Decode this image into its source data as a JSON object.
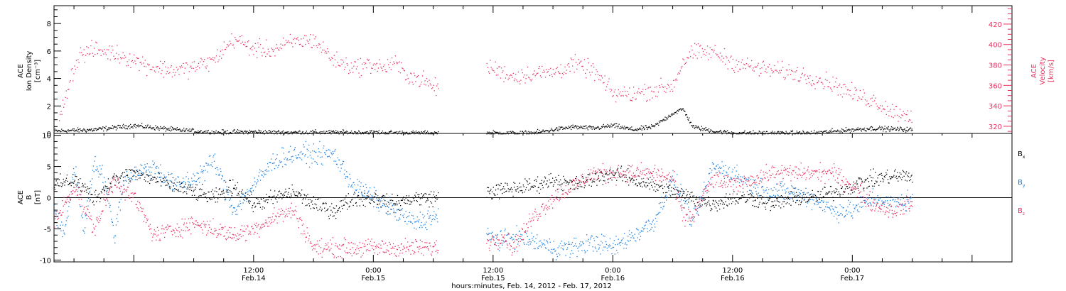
{
  "colors": {
    "black": "#000000",
    "pink": "#e8305f",
    "blue": "#1a7fe0",
    "frame": "#000000"
  },
  "xaxis": {
    "label": "hours:minutes, Feb. 14, 2012 - Feb. 17, 2012",
    "range_hours": [
      -8,
      88
    ],
    "ticks": [
      {
        "hour": 12,
        "time": "12:00",
        "day": "Feb.14"
      },
      {
        "hour": 24,
        "time": "0:00",
        "day": "Feb.15"
      },
      {
        "hour": 36,
        "time": "12:00",
        "day": "Feb.15"
      },
      {
        "hour": 48,
        "time": "0:00",
        "day": "Feb.16"
      },
      {
        "hour": 60,
        "time": "12:00",
        "day": "Feb.16"
      },
      {
        "hour": 72,
        "time": "0:00",
        "day": "Feb.17"
      }
    ]
  },
  "chart_data": [
    {
      "type": "scatter",
      "panel": "top",
      "ylabel_left": [
        "ACE",
        "Ion Density",
        "[cm⁻³]"
      ],
      "ylabel_right": [
        "ACE",
        "Velocity",
        "[km/s]"
      ],
      "ylim_left": [
        0,
        9.3
      ],
      "ylim_right": [
        313,
        438
      ],
      "yticks_left": [
        0,
        2,
        4,
        6,
        8
      ],
      "yticks_right": [
        320,
        340,
        360,
        380,
        400,
        420
      ],
      "data_gap_hours": [
        30.5,
        35.3
      ],
      "series": [
        {
          "axis": "right",
          "color": "#e8305f",
          "x": [
            -7.5,
            -6.5,
            -5.5,
            -4,
            -2,
            0,
            2,
            4,
            6,
            8,
            10,
            12,
            14,
            16,
            18,
            19,
            20,
            22,
            24,
            25,
            26,
            27,
            28,
            29,
            30,
            35.5,
            37,
            38,
            40,
            42,
            44,
            46,
            48,
            50,
            52,
            54,
            55,
            56,
            58,
            60,
            62,
            64,
            66,
            68,
            70,
            72,
            74,
            76,
            78
          ],
          "y": [
            325,
            365,
            390,
            395,
            392,
            385,
            378,
            375,
            378,
            385,
            406,
            396,
            395,
            403,
            405,
            395,
            385,
            378,
            381,
            377,
            383,
            373,
            368,
            365,
            358,
            378,
            373,
            369,
            372,
            373,
            381,
            375,
            352,
            352,
            356,
            360,
            384,
            392,
            393,
            383,
            378,
            375,
            373,
            368,
            362,
            352,
            346,
            335,
            331
          ]
        },
        {
          "axis": "left",
          "color": "#000000",
          "x": [
            -8,
            -4,
            0,
            4,
            8,
            12,
            14,
            16,
            20,
            24,
            28,
            30,
            35.5,
            40,
            42,
            44,
            46,
            48,
            50,
            52,
            54,
            55,
            56,
            58,
            60,
            64,
            68,
            72,
            74,
            76,
            78
          ],
          "y": [
            0.2,
            0.3,
            0.6,
            0.3,
            0.1,
            0.15,
            0.1,
            0.1,
            0.1,
            0.1,
            0.05,
            0.05,
            0.05,
            0.05,
            0.3,
            0.5,
            0.4,
            0.6,
            0.3,
            0.5,
            1.5,
            1.8,
            0.5,
            0.2,
            0.05,
            0.05,
            0.05,
            0.3,
            0.4,
            0.35,
            0.3
          ]
        }
      ]
    },
    {
      "type": "scatter",
      "panel": "bottom",
      "ylabel_left": [
        "ACE",
        "B",
        "[nT]"
      ],
      "ylim": [
        -10.3,
        10.3
      ],
      "yticks": [
        -10,
        -5,
        0,
        5,
        10
      ],
      "zero_line": true,
      "data_gap_hours": [
        30.5,
        35.3
      ],
      "legend": [
        {
          "main": "B",
          "sub": "x",
          "color": "#000000"
        },
        {
          "main": "B",
          "sub": "y",
          "color": "#1a7fe0"
        },
        {
          "main": "B",
          "sub": "z",
          "color": "#e8305f"
        }
      ],
      "series": [
        {
          "name": "Bx",
          "color": "#000000",
          "x": [
            -8,
            -6,
            -4,
            -2,
            0,
            2,
            4,
            6,
            8,
            10,
            12,
            14,
            16,
            18,
            20,
            22,
            24,
            26,
            28,
            30,
            35.5,
            38,
            40,
            42,
            44,
            46,
            48,
            50,
            52,
            54,
            56,
            58,
            60,
            62,
            64,
            66,
            68,
            70,
            72,
            74,
            76,
            78
          ],
          "y": [
            2,
            3,
            0,
            3,
            4,
            3,
            2,
            1,
            0,
            2,
            -1,
            0,
            1,
            -1,
            -2,
            0,
            0,
            -1,
            0,
            0,
            1,
            1.5,
            2,
            3,
            2,
            3,
            4,
            3,
            2,
            1,
            0,
            -1,
            0,
            0,
            -1,
            0,
            0,
            1,
            2,
            3,
            3.5,
            3.5
          ]
        },
        {
          "name": "By",
          "color": "#1a7fe0",
          "x": [
            -8,
            -7,
            -6,
            -5,
            -4,
            -3,
            -2,
            -1,
            0,
            2,
            4,
            6,
            8,
            10,
            12,
            14,
            16,
            18,
            20,
            22,
            24,
            26,
            28,
            30,
            35.5,
            37,
            38,
            40,
            42,
            44,
            46,
            48,
            50,
            52,
            54,
            55,
            56,
            58,
            60,
            62,
            64,
            66,
            68,
            70,
            72,
            74,
            76,
            78
          ],
          "y": [
            -2,
            -6,
            5,
            -5,
            6,
            3,
            -6,
            3,
            4,
            5,
            2,
            3,
            6,
            -2,
            2,
            6,
            7,
            7,
            7,
            2,
            0,
            -2,
            -4,
            -3,
            -6,
            -7,
            -6,
            -7,
            -8,
            -8,
            -7,
            -8,
            -6,
            -4,
            3,
            0,
            -4,
            5,
            4,
            2,
            1,
            1,
            0,
            -2,
            -2,
            0,
            -1,
            0
          ]
        },
        {
          "name": "Bz",
          "color": "#e8305f",
          "x": [
            -8,
            -6,
            -4,
            -2,
            0,
            2,
            4,
            6,
            8,
            10,
            12,
            14,
            16,
            18,
            20,
            22,
            24,
            26,
            28,
            30,
            35.5,
            37,
            38,
            40,
            42,
            44,
            46,
            48,
            50,
            52,
            54,
            55,
            56,
            58,
            60,
            62,
            64,
            66,
            68,
            70,
            72,
            74,
            76,
            78
          ],
          "y": [
            -4,
            2,
            -5,
            3,
            0,
            -6,
            -5,
            -4,
            -5,
            -6,
            -5,
            -3,
            -2,
            -8,
            -8,
            -8,
            -8,
            -8,
            -8,
            -8,
            -7,
            -6,
            -8,
            -3,
            0,
            2,
            4,
            4,
            4,
            4,
            3,
            -3,
            -3,
            3,
            2,
            3,
            4,
            4,
            4,
            4,
            2,
            -1,
            -2,
            -1
          ]
        }
      ]
    }
  ]
}
